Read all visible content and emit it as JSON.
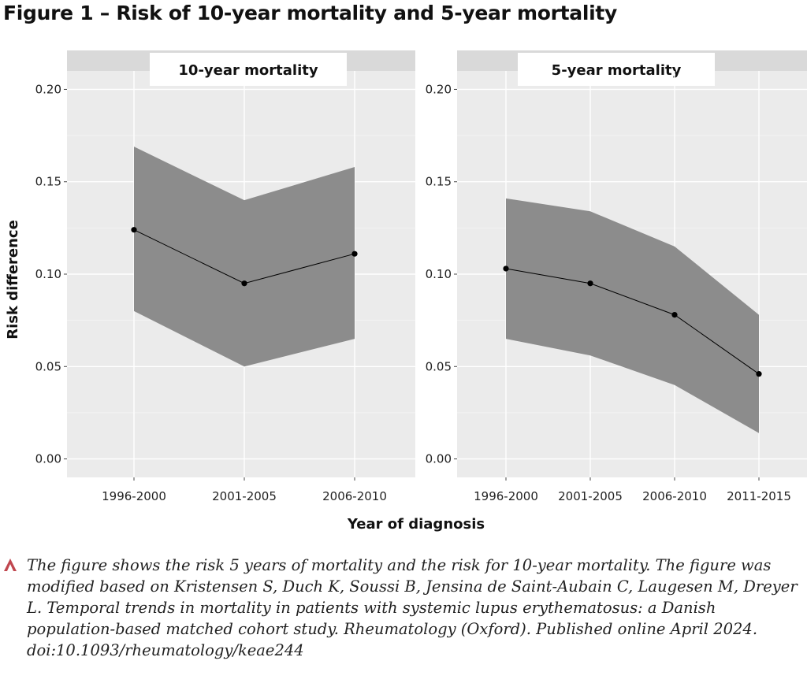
{
  "figure": {
    "title": "Figure 1 – Risk of 10-year mortality and 5-year mortality",
    "caption": "The figure shows the risk 5 years of mortality and the risk for 10-year mortality. The figure was modified based on Kristensen S, Duch K, Soussi B, Jensina de Saint-Aubain C, Laugesen M, Dreyer L. Temporal trends in mortality in patients with systemic lupus erythematosus: a Danish population-based matched cohort study. Rheumatology (Oxford). Published online April 2024. doi:10.1093/rheumatology/keae244"
  },
  "colors": {
    "panel_bg": "#ebebeb",
    "strip_bg": "#d9d9d9",
    "ribbon": "#8c8c8c",
    "line": "#000000",
    "caption_marker": "#c0474f"
  },
  "chart_data": [
    {
      "type": "line",
      "panel_title": "10-year mortality",
      "categories": [
        "1996-2000",
        "2001-2005",
        "2006-2010"
      ],
      "values": [
        0.124,
        0.095,
        0.111
      ],
      "ci_lower": [
        0.08,
        0.05,
        0.065
      ],
      "ci_upper": [
        0.169,
        0.14,
        0.158
      ],
      "ylabel": "Risk difference",
      "xlabel": "Year of diagnosis",
      "ylim": [
        -0.01,
        0.21
      ],
      "yticks": [
        "0.00",
        "0.05",
        "0.10",
        "0.15",
        "0.20"
      ],
      "grid": true
    },
    {
      "type": "line",
      "panel_title": "5-year mortality",
      "categories": [
        "1996-2000",
        "2001-2005",
        "2006-2010",
        "2011-2015"
      ],
      "values": [
        0.103,
        0.095,
        0.078,
        0.046
      ],
      "ci_lower": [
        0.065,
        0.056,
        0.04,
        0.014
      ],
      "ci_upper": [
        0.141,
        0.134,
        0.115,
        0.078
      ],
      "ylim": [
        -0.01,
        0.21
      ],
      "yticks": [
        "0.00",
        "0.05",
        "0.10",
        "0.15",
        "0.20"
      ],
      "grid": true
    }
  ]
}
